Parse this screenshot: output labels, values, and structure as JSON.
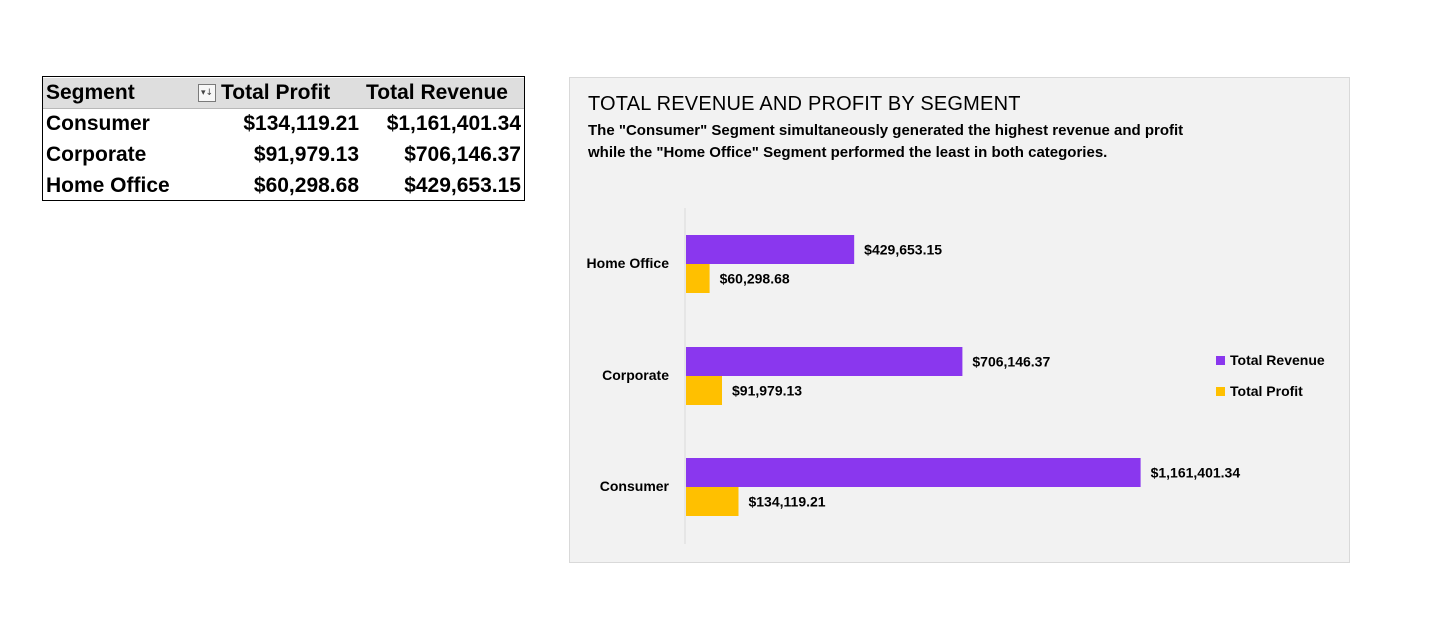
{
  "pivot": {
    "headers": {
      "segment": "Segment",
      "profit": "Total Profit",
      "revenue": "Total Revenue"
    },
    "filter_icon": "sort-filter-icon",
    "rows": [
      {
        "segment": "Consumer",
        "profit": "$134,119.21",
        "revenue": "$1,161,401.34"
      },
      {
        "segment": "Corporate",
        "profit": "$91,979.13",
        "revenue": "$706,146.37"
      },
      {
        "segment": "Home Office",
        "profit": "$60,298.68",
        "revenue": "$429,653.15"
      }
    ]
  },
  "chart_data": {
    "type": "bar",
    "orientation": "horizontal",
    "title": "TOTAL REVENUE AND PROFIT BY SEGMENT",
    "subtitle": "The \"Consumer\" Segment simultaneously generated the highest revenue and profit while the \"Home Office\" Segment performed the least in both categories.",
    "categories": [
      "Home Office",
      "Corporate",
      "Consumer"
    ],
    "series": [
      {
        "name": "Total Revenue",
        "color": "#8a37ee",
        "values": [
          429653.15,
          706146.37,
          1161401.34
        ],
        "labels": [
          "$429,653.15",
          "$706,146.37",
          "$1,161,401.34"
        ]
      },
      {
        "name": "Total Profit",
        "color": "#ffc000",
        "values": [
          60298.68,
          91979.13,
          134119.21
        ],
        "labels": [
          "$60,298.68",
          "$91,979.13",
          "$134,119.21"
        ]
      }
    ],
    "xlim": [
      0,
      1400000
    ],
    "grid": false,
    "legend": "right"
  }
}
